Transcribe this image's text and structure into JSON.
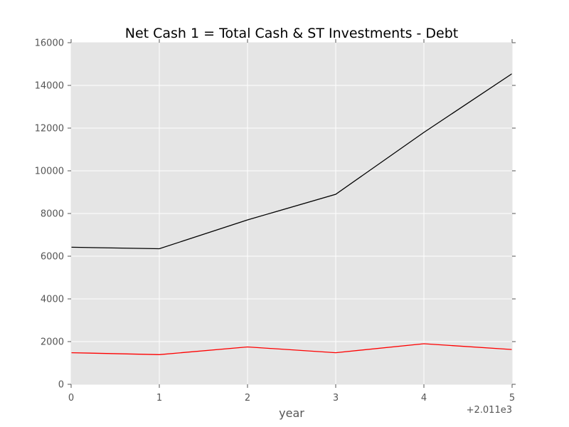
{
  "chart_data": {
    "type": "line",
    "title": "Net Cash 1 = Total Cash & ST Investments - Debt",
    "xlabel": "year",
    "ylabel": "",
    "x_offset_label": "+2.011e3",
    "x": [
      0,
      1,
      2,
      3,
      4,
      5
    ],
    "x_tick_labels": [
      "0",
      "1",
      "2",
      "3",
      "4",
      "5"
    ],
    "y_tick_labels": [
      "0",
      "2000",
      "4000",
      "6000",
      "8000",
      "10000",
      "12000",
      "14000",
      "16000"
    ],
    "xlim": [
      0,
      5
    ],
    "ylim": [
      0,
      16000
    ],
    "grid": true,
    "background": "#e5e5e5",
    "series": [
      {
        "color": "#000000",
        "values": [
          6420,
          6350,
          7700,
          8900,
          11800,
          14550
        ]
      },
      {
        "color": "#ff0000",
        "values": [
          1480,
          1390,
          1750,
          1480,
          1900,
          1630
        ]
      }
    ]
  }
}
